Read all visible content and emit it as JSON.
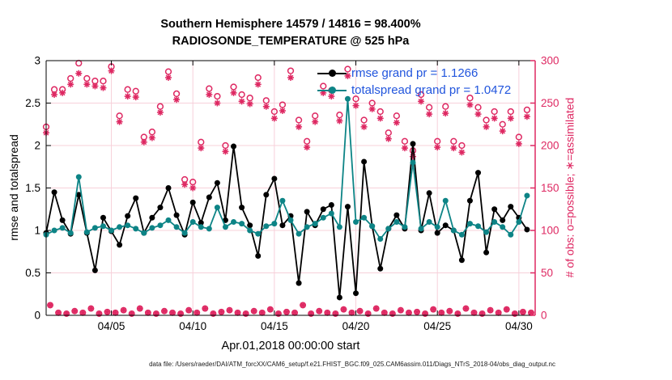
{
  "header": {
    "title_line1": "Southern Hemisphere 14579 / 14816 = 98.400%",
    "title_line2": "RADIOSONDE_TEMPERATURE @ 525 hPa"
  },
  "legend": {
    "text_color": "#2155dd",
    "entries": [
      {
        "label": "rmse grand pr = 1.1266",
        "color": "#000000"
      },
      {
        "label": "totalspread grand pr = 1.0472",
        "color": "#0d8486"
      }
    ]
  },
  "footer": {
    "text": "data file: /Users/raeder/DAI/ATM_forcXX/CAM6_setup/f.e21.FHIST_BGC.f09_025.CAM6assim.011/Diags_NTrS_2018-04/obs_diag_output.nc"
  },
  "colors": {
    "obs_pink": "#de2862",
    "grid_pink": "#f7d0da",
    "teal": "#0d8486",
    "black": "#000000",
    "legend_blue": "#2155dd"
  },
  "chart_data": {
    "type": "line",
    "title": "Southern Hemisphere 14579 / 14816 = 98.400%  /  RADIOSONDE_TEMPERATURE @ 525 hPa",
    "xlabel": "Apr.01,2018 00:00:00 start",
    "ylabel_left": "rmse and totalspread",
    "ylabel_right": "# of obs: o=possible; ∗=assimilated",
    "grid": true,
    "legend_position": "top-center-inside",
    "xlim_days": [
      0,
      30
    ],
    "ylim_left": [
      0,
      3
    ],
    "ylim_right": [
      0,
      300
    ],
    "x_tick_days": [
      4,
      9,
      14,
      19,
      24,
      29
    ],
    "x_tick_labels": [
      "04/05",
      "04/10",
      "04/15",
      "04/20",
      "04/25",
      "04/30"
    ],
    "y_ticks_left": [
      0,
      0.5,
      1,
      1.5,
      2,
      2.5,
      3
    ],
    "y_tick_labels_left": [
      "0",
      "0.5",
      "1",
      "1.5",
      "2",
      "2.5",
      "3"
    ],
    "y_ticks_right": [
      0,
      50,
      100,
      150,
      200,
      250,
      300
    ],
    "y_tick_labels_right": [
      "0",
      "50",
      "100",
      "150",
      "200",
      "250",
      "300"
    ],
    "x": [
      0,
      0.5,
      1,
      1.5,
      2,
      2.5,
      3,
      3.5,
      4,
      4.5,
      5,
      5.5,
      6,
      6.5,
      7,
      7.5,
      8,
      8.5,
      9,
      9.5,
      10,
      10.5,
      11,
      11.5,
      12,
      12.5,
      13,
      13.5,
      14,
      14.5,
      15,
      15.5,
      16,
      16.5,
      17,
      17.5,
      18,
      18.5,
      19,
      19.5,
      20,
      20.5,
      21,
      21.5,
      22,
      22.5,
      23,
      23.5,
      24,
      24.5,
      25,
      25.5,
      26,
      26.5,
      27,
      27.5,
      28,
      28.5,
      29,
      29.5
    ],
    "series": [
      {
        "name": "rmse",
        "type": "line+marker",
        "axis": "left",
        "color": "#000000",
        "values": [
          0.97,
          1.45,
          1.12,
          0.96,
          1.42,
          0.97,
          0.53,
          1.15,
          0.99,
          0.83,
          1.17,
          1.38,
          0.97,
          1.15,
          1.27,
          1.5,
          1.18,
          0.95,
          1.33,
          1.09,
          1.39,
          1.56,
          1.12,
          1.99,
          1.27,
          1.06,
          0.7,
          1.42,
          1.61,
          1.06,
          1.17,
          0.38,
          1.22,
          1.06,
          1.25,
          1.3,
          0.21,
          1.28,
          0.26,
          1.81,
          1.05,
          0.55,
          1.02,
          1.18,
          1.02,
          2.02,
          1.0,
          1.44,
          0.97,
          1.06,
          1.0,
          0.65,
          1.35,
          1.68,
          0.74,
          1.25,
          1.12,
          1.28,
          1.15,
          1.01
        ]
      },
      {
        "name": "totalspread",
        "type": "line+marker",
        "axis": "left",
        "color": "#0d8486",
        "values": [
          0.95,
          1.0,
          1.03,
          0.97,
          1.63,
          0.98,
          1.03,
          1.05,
          1.0,
          1.04,
          1.06,
          1.02,
          0.97,
          1.03,
          1.06,
          1.12,
          1.04,
          0.97,
          1.1,
          1.04,
          1.02,
          1.27,
          1.04,
          1.1,
          1.08,
          1.0,
          0.96,
          1.05,
          1.08,
          1.35,
          1.12,
          0.96,
          1.04,
          1.08,
          1.15,
          1.2,
          1.04,
          2.55,
          1.1,
          1.15,
          1.05,
          0.9,
          1.02,
          1.1,
          1.04,
          1.8,
          1.02,
          1.1,
          1.04,
          1.35,
          1.0,
          0.95,
          1.08,
          1.05,
          0.98,
          1.1,
          1.04,
          0.95,
          1.1,
          1.41
        ]
      },
      {
        "name": "possible_obs",
        "type": "scatter",
        "marker": "o",
        "axis": "right",
        "color": "#de2862",
        "values": [
          222,
          266,
          266,
          279,
          297,
          279,
          276,
          276,
          293,
          235,
          266,
          264,
          210,
          216,
          246,
          287,
          261,
          160,
          157,
          204,
          267,
          258,
          200,
          269,
          260,
          256,
          280,
          253,
          240,
          248,
          288,
          230,
          205,
          235,
          270,
          265,
          236,
          290,
          255,
          230,
          250,
          240,
          215,
          235,
          205,
          194,
          260,
          245,
          205,
          246,
          205,
          200,
          256,
          245,
          230,
          240,
          225,
          240,
          210,
          242
        ]
      },
      {
        "name": "assimilated_obs",
        "type": "scatter",
        "marker": "*",
        "axis": "right",
        "color": "#de2862",
        "values": [
          215,
          260,
          262,
          272,
          285,
          272,
          270,
          268,
          288,
          228,
          258,
          257,
          204,
          209,
          239,
          280,
          254,
          154,
          150,
          197,
          260,
          250,
          193,
          262,
          252,
          249,
          272,
          246,
          232,
          241,
          280,
          222,
          198,
          228,
          262,
          258,
          229,
          282,
          247,
          222,
          243,
          232,
          208,
          227,
          197,
          187,
          252,
          237,
          198,
          238,
          197,
          192,
          248,
          237,
          222,
          232,
          217,
          232,
          202,
          234
        ]
      },
      {
        "name": "offhour_obs",
        "type": "scatter",
        "marker": "o*",
        "axis": "right",
        "color": "#de2862",
        "time_offset_days": 0.25,
        "values": [
          12,
          3,
          2,
          5,
          3,
          8,
          2,
          4,
          3,
          6,
          2,
          8,
          3,
          2,
          5,
          3,
          2,
          6,
          3,
          8,
          2,
          4,
          6,
          3,
          2,
          5,
          3,
          7,
          2,
          4,
          3,
          12,
          2,
          5,
          3,
          2,
          7,
          3,
          5,
          2,
          8,
          3,
          2,
          6,
          3,
          4,
          2,
          7,
          3,
          5,
          2,
          8,
          3,
          2,
          6,
          3,
          7,
          2,
          4,
          3
        ]
      }
    ]
  }
}
